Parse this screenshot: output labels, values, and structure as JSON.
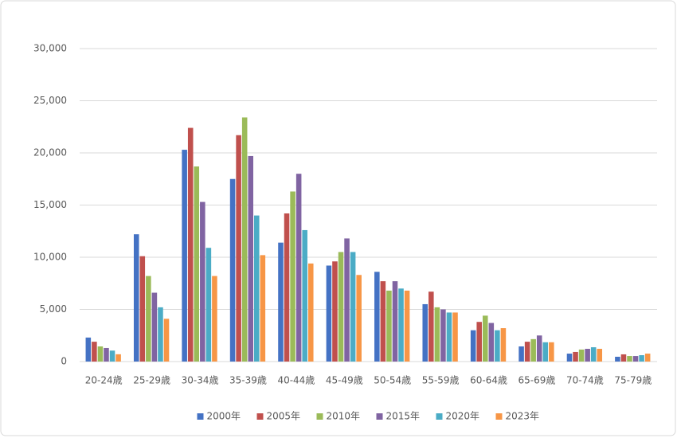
{
  "chart_data": {
    "type": "bar",
    "categories": [
      "20-24歳",
      "25-29歳",
      "30-34歳",
      "35-39歳",
      "40-44歳",
      "45-49歳",
      "50-54歳",
      "55-59歳",
      "60-64歳",
      "65-69歳",
      "70-74歳",
      "75-79歳"
    ],
    "series": [
      {
        "name": "2000年",
        "color": "#4472c4",
        "values": [
          2300,
          12200,
          20300,
          17500,
          11400,
          9200,
          8600,
          5500,
          3000,
          1450,
          760,
          460
        ]
      },
      {
        "name": "2005年",
        "color": "#c0504d",
        "values": [
          1900,
          10100,
          22400,
          21700,
          14200,
          9600,
          7700,
          6700,
          3800,
          1900,
          920,
          690
        ]
      },
      {
        "name": "2010年",
        "color": "#9bbb59",
        "values": [
          1450,
          8200,
          18700,
          23400,
          16300,
          10500,
          6800,
          5200,
          4400,
          2150,
          1150,
          530
        ]
      },
      {
        "name": "2015年",
        "color": "#8064a2",
        "values": [
          1300,
          6600,
          15300,
          19700,
          18000,
          11800,
          7700,
          5000,
          3700,
          2500,
          1220,
          530
        ]
      },
      {
        "name": "2020年",
        "color": "#4bacc6",
        "values": [
          1050,
          5200,
          10900,
          14000,
          12600,
          10500,
          7000,
          4700,
          3000,
          1850,
          1370,
          610
        ]
      },
      {
        "name": "2023年",
        "color": "#f79646",
        "values": [
          700,
          4100,
          8200,
          10200,
          9400,
          8300,
          6800,
          4700,
          3200,
          1850,
          1220,
          760
        ]
      }
    ],
    "ylim": [
      0,
      30000
    ],
    "yticks": [
      0,
      {
        "value": 5000,
        "label": "5,000"
      },
      {
        "value": 10000,
        "label": "10,000"
      },
      {
        "value": 15000,
        "label": "15,000"
      },
      {
        "value": 20000,
        "label": "20,000"
      },
      {
        "value": 25000,
        "label": "25,000"
      },
      {
        "value": 30000,
        "label": "30,000"
      }
    ],
    "grid": true,
    "legend": "bottom"
  }
}
